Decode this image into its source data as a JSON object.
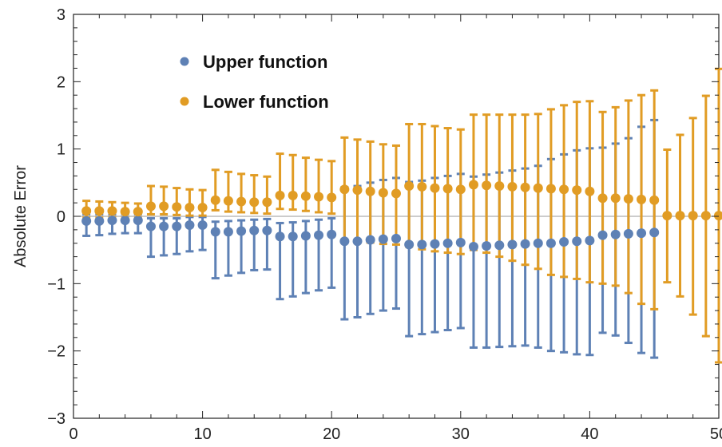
{
  "chart_data": {
    "type": "scatter",
    "title": "",
    "xlabel": "",
    "ylabel": "Absolute Error",
    "xlim": [
      0,
      50
    ],
    "ylim": [
      -3,
      3
    ],
    "xticks": [
      0,
      10,
      20,
      30,
      40,
      50
    ],
    "yticks": [
      -3,
      -2,
      -1,
      0,
      1,
      2,
      3
    ],
    "grid": false,
    "zero_line": true,
    "legend_position": "top-left",
    "series": [
      {
        "name": "Upper function",
        "color": "#5e81b5",
        "x": [
          1,
          2,
          3,
          4,
          5,
          6,
          7,
          8,
          9,
          10,
          11,
          12,
          13,
          14,
          15,
          16,
          17,
          18,
          19,
          20,
          21,
          22,
          23,
          24,
          25,
          26,
          27,
          28,
          29,
          30,
          31,
          32,
          33,
          34,
          35,
          36,
          37,
          38,
          39,
          40,
          41,
          42,
          43,
          44,
          45
        ],
        "y": [
          -0.07,
          -0.07,
          -0.06,
          -0.06,
          -0.06,
          -0.15,
          -0.15,
          -0.15,
          -0.13,
          -0.13,
          -0.23,
          -0.23,
          -0.22,
          -0.21,
          -0.21,
          -0.3,
          -0.3,
          -0.29,
          -0.28,
          -0.27,
          -0.37,
          -0.37,
          -0.35,
          -0.34,
          -0.33,
          -0.42,
          -0.42,
          -0.41,
          -0.4,
          -0.39,
          -0.45,
          -0.44,
          -0.43,
          -0.42,
          -0.41,
          -0.4,
          -0.4,
          -0.38,
          -0.37,
          -0.36,
          -0.28,
          -0.27,
          -0.26,
          -0.25,
          -0.24
        ],
        "err_lower": [
          0.22,
          0.21,
          0.2,
          0.19,
          0.19,
          0.45,
          0.43,
          0.41,
          0.39,
          0.37,
          0.69,
          0.65,
          0.62,
          0.59,
          0.58,
          0.93,
          0.89,
          0.85,
          0.82,
          0.79,
          1.16,
          1.13,
          1.1,
          1.06,
          1.04,
          1.36,
          1.33,
          1.31,
          1.29,
          1.27,
          1.5,
          1.51,
          1.51,
          1.51,
          1.51,
          1.55,
          1.6,
          1.64,
          1.68,
          1.7,
          1.45,
          1.5,
          1.62,
          1.78,
          1.86
        ],
        "err_upper": [
          0.1,
          0.1,
          0.09,
          0.09,
          0.09,
          0.12,
          0.12,
          0.12,
          0.12,
          0.12,
          0.15,
          0.16,
          0.16,
          0.16,
          0.17,
          0.2,
          0.21,
          0.22,
          0.23,
          0.24,
          0.8,
          0.82,
          0.85,
          0.88,
          0.9,
          0.93,
          0.95,
          0.98,
          1.0,
          1.02,
          1.04,
          1.06,
          1.08,
          1.1,
          1.12,
          1.15,
          1.25,
          1.3,
          1.35,
          1.37,
          1.3,
          1.35,
          1.42,
          1.58,
          1.67
        ]
      },
      {
        "name": "Lower function",
        "color": "#e19c24",
        "x": [
          1,
          2,
          3,
          4,
          5,
          6,
          7,
          8,
          9,
          10,
          11,
          12,
          13,
          14,
          15,
          16,
          17,
          18,
          19,
          20,
          21,
          22,
          23,
          24,
          25,
          26,
          27,
          28,
          29,
          30,
          31,
          32,
          33,
          34,
          35,
          36,
          37,
          38,
          39,
          40,
          41,
          42,
          43,
          44,
          45,
          46,
          47,
          48,
          49,
          50
        ],
        "y": [
          0.08,
          0.08,
          0.08,
          0.07,
          0.07,
          0.15,
          0.15,
          0.14,
          0.13,
          0.13,
          0.24,
          0.23,
          0.22,
          0.21,
          0.21,
          0.31,
          0.31,
          0.3,
          0.29,
          0.28,
          0.4,
          0.39,
          0.37,
          0.35,
          0.34,
          0.45,
          0.44,
          0.42,
          0.41,
          0.4,
          0.47,
          0.46,
          0.45,
          0.44,
          0.43,
          0.42,
          0.41,
          0.4,
          0.39,
          0.37,
          0.27,
          0.27,
          0.26,
          0.25,
          0.24,
          0.01,
          0.01,
          0.01,
          0.01,
          0.01
        ],
        "err_lower": [
          0.1,
          0.1,
          0.09,
          0.09,
          0.09,
          0.12,
          0.12,
          0.12,
          0.12,
          0.12,
          0.15,
          0.16,
          0.16,
          0.16,
          0.17,
          0.2,
          0.21,
          0.22,
          0.23,
          0.24,
          0.76,
          0.76,
          0.76,
          0.76,
          0.76,
          0.9,
          0.93,
          0.94,
          0.95,
          0.96,
          0.97,
          1.0,
          1.05,
          1.1,
          1.15,
          1.2,
          1.28,
          1.3,
          1.32,
          1.35,
          1.27,
          1.3,
          1.4,
          1.55,
          1.62,
          0.99,
          1.2,
          1.47,
          1.79,
          2.18
        ],
        "err_upper": [
          0.15,
          0.14,
          0.13,
          0.13,
          0.12,
          0.3,
          0.29,
          0.28,
          0.27,
          0.26,
          0.45,
          0.43,
          0.41,
          0.4,
          0.38,
          0.62,
          0.6,
          0.57,
          0.55,
          0.54,
          0.77,
          0.75,
          0.74,
          0.72,
          0.71,
          0.92,
          0.93,
          0.92,
          0.9,
          0.89,
          1.04,
          1.05,
          1.06,
          1.07,
          1.08,
          1.1,
          1.18,
          1.25,
          1.31,
          1.34,
          1.28,
          1.35,
          1.46,
          1.55,
          1.63,
          0.98,
          1.2,
          1.45,
          1.78,
          2.18
        ]
      }
    ]
  }
}
